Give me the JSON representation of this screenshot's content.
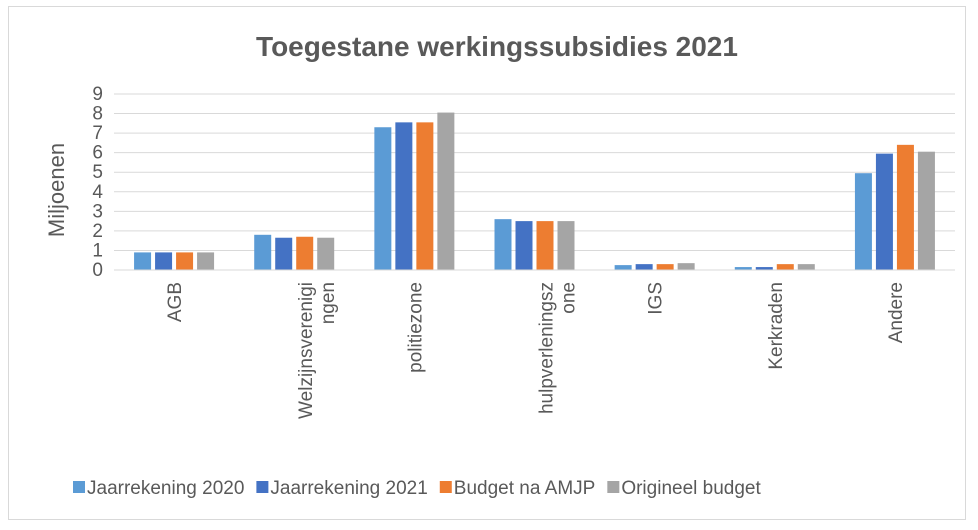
{
  "chart_data": {
    "type": "bar",
    "title": "Toegestane werkingssubsidies 2021",
    "ylabel": "Miljoenen",
    "xlabel": "",
    "ylim": [
      0,
      9
    ],
    "yticks": [
      "0",
      "1",
      "2",
      "3",
      "4",
      "5",
      "6",
      "7",
      "8",
      "9"
    ],
    "grid": true,
    "legend_position": "bottom",
    "categories": [
      [
        "AGB"
      ],
      [
        "Welzijnsverenigi",
        "ngen"
      ],
      [
        "politiezone"
      ],
      [
        "hulpverleningsz",
        "one"
      ],
      [
        "IGS"
      ],
      [
        "Kerkraden"
      ],
      [
        "Andere"
      ]
    ],
    "series": [
      {
        "name": "Jaarrekening 2020",
        "color": "#5b9bd5",
        "values": [
          0.9,
          1.8,
          7.3,
          2.6,
          0.25,
          0.15,
          4.95
        ]
      },
      {
        "name": "Jaarrekening 2021",
        "color": "#4472c4",
        "values": [
          0.9,
          1.65,
          7.55,
          2.5,
          0.3,
          0.15,
          5.95
        ]
      },
      {
        "name": "Budget na AMJP",
        "color": "#ed7d31",
        "values": [
          0.9,
          1.7,
          7.55,
          2.5,
          0.3,
          0.3,
          6.4
        ]
      },
      {
        "name": "Origineel budget",
        "color": "#a5a5a5",
        "values": [
          0.9,
          1.65,
          8.05,
          2.5,
          0.35,
          0.3,
          6.05
        ]
      }
    ]
  }
}
